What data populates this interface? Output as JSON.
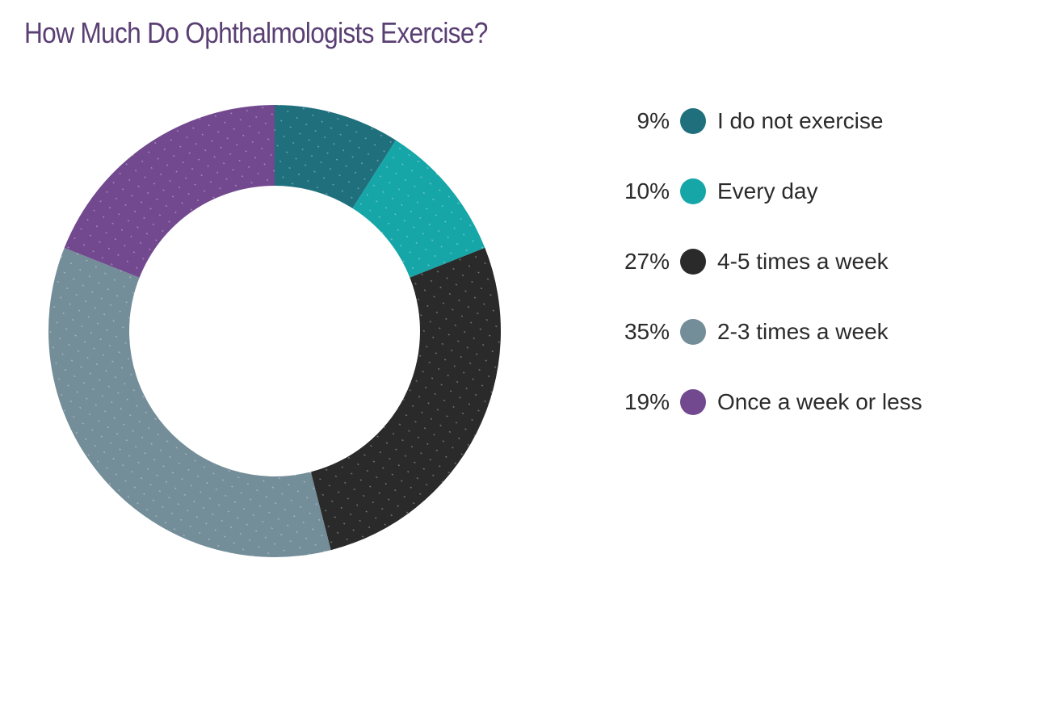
{
  "chart_data": {
    "type": "pie",
    "title": "How Much Do Ophthalmologists Exercise?",
    "donut": true,
    "legend_position": "right",
    "slices": [
      {
        "label": "I do not exercise",
        "value": 9,
        "display": "9%",
        "color": "#1f6f7d"
      },
      {
        "label": "Every day",
        "value": 10,
        "display": "10%",
        "color": "#16a6a8"
      },
      {
        "label": "4-5 times a week",
        "value": 27,
        "display": "27%",
        "color": "#2a2a2a"
      },
      {
        "label": "2-3 times a week",
        "value": 35,
        "display": "35%",
        "color": "#738d99"
      },
      {
        "label": "Once a week or less",
        "value": 19,
        "display": "19%",
        "color": "#72488f"
      }
    ]
  }
}
